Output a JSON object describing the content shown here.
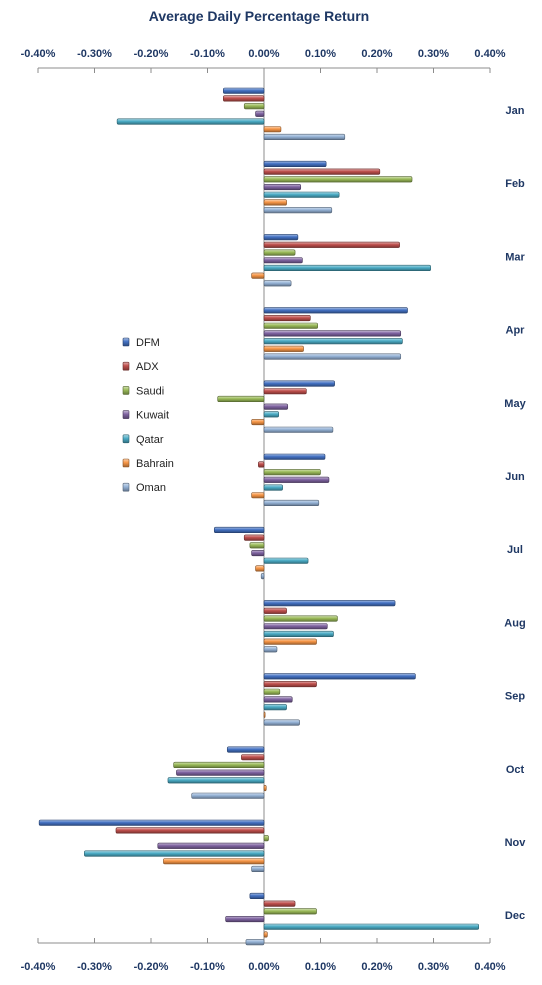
{
  "chart_data": {
    "type": "bar",
    "orientation": "horizontal",
    "title": "Average Daily Percentage Return",
    "xlim": [
      -0.4,
      0.4
    ],
    "x_ticks": [
      "-0.40%",
      "-0.30%",
      "-0.20%",
      "-0.10%",
      "0.00%",
      "0.10%",
      "0.20%",
      "0.30%",
      "0.40%"
    ],
    "x_tick_values": [
      -0.4,
      -0.3,
      -0.2,
      -0.1,
      0.0,
      0.1,
      0.2,
      0.3,
      0.4
    ],
    "categories": [
      "Jan",
      "Feb",
      "Mar",
      "Apr",
      "May",
      "Jun",
      "Jul",
      "Aug",
      "Sep",
      "Oct",
      "Nov",
      "Dec"
    ],
    "legend_position": "left",
    "series": [
      {
        "name": "DFM",
        "color": "#4472c4",
        "values": [
          -0.072,
          0.11,
          0.06,
          0.254,
          0.125,
          0.108,
          -0.088,
          0.232,
          0.268,
          -0.065,
          -0.398,
          -0.025
        ]
      },
      {
        "name": "ADX",
        "color": "#c0504d",
        "values": [
          -0.072,
          0.205,
          0.24,
          0.082,
          0.075,
          -0.01,
          -0.035,
          0.04,
          0.093,
          -0.04,
          -0.262,
          0.055
        ]
      },
      {
        "name": "Saudi",
        "color": "#9bbb59",
        "values": [
          -0.035,
          0.262,
          0.055,
          0.095,
          -0.082,
          0.1,
          -0.025,
          0.13,
          0.028,
          -0.16,
          0.008,
          0.093
        ]
      },
      {
        "name": "Kuwait",
        "color": "#8064a2",
        "values": [
          -0.015,
          0.065,
          0.068,
          0.242,
          0.042,
          0.115,
          -0.022,
          0.112,
          0.05,
          -0.155,
          -0.188,
          -0.068
        ]
      },
      {
        "name": "Qatar",
        "color": "#4bacc6",
        "values": [
          -0.26,
          0.133,
          0.295,
          0.245,
          0.026,
          0.033,
          0.078,
          0.123,
          0.04,
          -0.17,
          -0.318,
          0.38
        ]
      },
      {
        "name": "Bahrain",
        "color": "#f79646",
        "values": [
          0.03,
          0.04,
          -0.022,
          0.07,
          -0.022,
          -0.022,
          -0.015,
          0.093,
          0.002,
          0.004,
          -0.178,
          0.006
        ]
      },
      {
        "name": "Oman",
        "color": "#95b3d7",
        "values": [
          0.143,
          0.12,
          0.048,
          0.242,
          0.122,
          0.097,
          -0.005,
          0.023,
          0.063,
          -0.128,
          -0.022,
          -0.032
        ]
      }
    ]
  }
}
